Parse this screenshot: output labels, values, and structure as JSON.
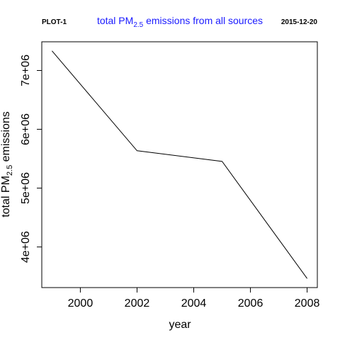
{
  "header": {
    "left_label": "PLOT-1",
    "right_label": "2015-12-20",
    "title": {
      "prefix": "total PM",
      "subscript": "2.5",
      "suffix": " emissions from all sources"
    }
  },
  "colors": {
    "title": "#1a1aff",
    "line": "#000000",
    "axis": "#000000"
  },
  "chart_data": {
    "type": "line",
    "x": [
      1999,
      2002,
      2005,
      2008
    ],
    "series": [
      {
        "values": [
          7332967,
          5635780,
          5454703,
          3464206
        ]
      }
    ],
    "xlabel": "year",
    "ylabel": {
      "prefix": "total PM",
      "subscript": "2.5",
      "suffix": " emissions"
    },
    "xlim": [
      1999,
      2008
    ],
    "ylim": [
      3464206,
      7332967
    ],
    "xticks": [
      2000,
      2002,
      2004,
      2006,
      2008
    ],
    "xtick_labels": [
      "2000",
      "2002",
      "2004",
      "2006",
      "2008"
    ],
    "yticks": [
      4000000,
      5000000,
      6000000,
      7000000
    ],
    "ytick_labels": [
      "4e+06",
      "5e+06",
      "6e+06",
      "7e+06"
    ],
    "grid": false,
    "legend": "none"
  }
}
